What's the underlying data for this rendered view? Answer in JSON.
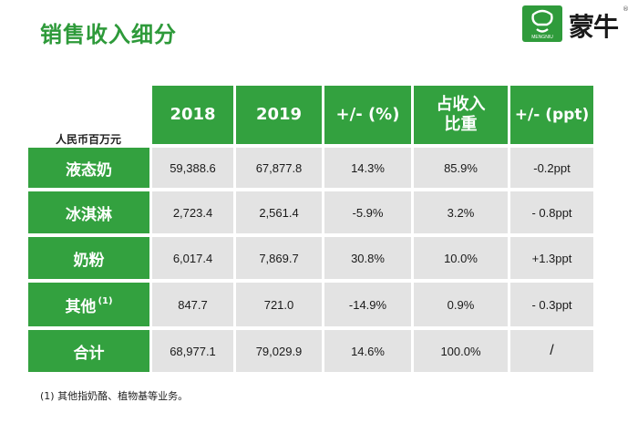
{
  "page": {
    "title": "销售收入细分",
    "brand": "蒙牛",
    "logo_text": "MENGNIU",
    "registered_mark": "®",
    "unit_label": "人民币百万元",
    "footnote": "(1) 其他指奶酪、植物基等业务。"
  },
  "table": {
    "headers": [
      "2018",
      "2019",
      "+/- (%)",
      "占收入\n比重",
      "+/- (ppt)"
    ],
    "header_lines": {
      "share_line1": "占收入",
      "share_line2": "比重"
    },
    "rows": [
      {
        "label": "液态奶",
        "note": "",
        "values": [
          "59,388.6",
          "67,877.8",
          "14.3%",
          "85.9%",
          "-0.2ppt"
        ]
      },
      {
        "label": "冰淇淋",
        "note": "",
        "values": [
          "2,723.4",
          "2,561.4",
          "-5.9%",
          "3.2%",
          "- 0.8ppt"
        ]
      },
      {
        "label": "奶粉",
        "note": "",
        "values": [
          "6,017.4",
          "7,869.7",
          "30.8%",
          "10.0%",
          "+1.3ppt"
        ]
      },
      {
        "label": "其他",
        "note": "(1)",
        "values": [
          "847.7",
          "721.0",
          "-14.9%",
          "0.9%",
          "- 0.3ppt"
        ]
      },
      {
        "label": "合计",
        "note": "",
        "values": [
          "68,977.1",
          "79,029.9",
          "14.6%",
          "100.0%",
          "/"
        ]
      }
    ]
  },
  "colors": {
    "green": "#33a13f",
    "title_green": "#2e9a3a",
    "cell_grey": "#e3e3e3"
  }
}
